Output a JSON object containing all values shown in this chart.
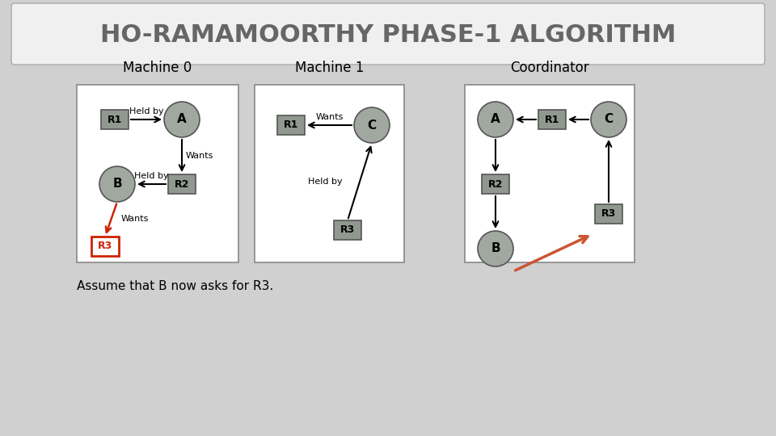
{
  "title": "HO-RAMAMOORTHY PHASE-1 ALGORITHM",
  "title_fontsize": 22,
  "bg_color": "#d0d0d0",
  "title_bg": "#f0f0f0",
  "node_color": "#a0a8a0",
  "resource_color": "#909890",
  "box_color": "white",
  "caption": "Assume that B now asks for R3.",
  "machine0_label": "Machine 0",
  "machine1_label": "Machine 1",
  "coordinator_label": "Coordinator"
}
